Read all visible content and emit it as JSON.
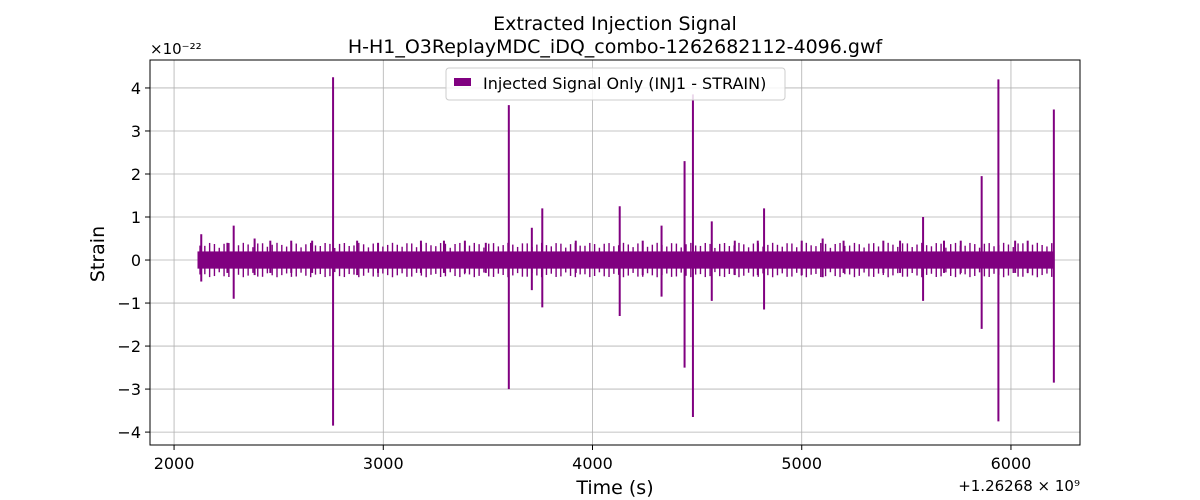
{
  "chart_data": {
    "type": "line",
    "title": "Extracted Injection Signal",
    "subtitle": "H-H1_O3ReplayMDC_iDQ_combo-1262682112-4096.gwf",
    "xlabel": "Time (s)",
    "ylabel": "Strain",
    "y_scale_label": "×10⁻²²",
    "x_offset_label": "+1.26268 × 10⁹",
    "x_ticks": [
      2000,
      3000,
      4000,
      5000,
      6000
    ],
    "x_tick_labels": [
      "2000",
      "3000",
      "4000",
      "5000",
      "6000"
    ],
    "y_ticks": [
      -4,
      -3,
      -2,
      -1,
      0,
      1,
      2,
      3,
      4
    ],
    "y_tick_labels": [
      "−4",
      "−3",
      "−2",
      "−1",
      "0",
      "1",
      "2",
      "3",
      "4"
    ],
    "xlim": [
      1885,
      6330
    ],
    "ylim": [
      -4.3,
      4.65
    ],
    "grid": true,
    "legend_position": "top-center",
    "series": [
      {
        "name": "Injected Signal Only (INJ1 - STRAIN)",
        "color": "#800080",
        "band": {
          "x_start": 2112,
          "x_end": 6208,
          "amplitude": 0.2
        },
        "spikes": [
          {
            "x": 2130,
            "y_max": 0.6,
            "y_min": -0.5
          },
          {
            "x": 2255,
            "y_max": 0.4,
            "y_min": -0.3
          },
          {
            "x": 2285,
            "y_max": 0.8,
            "y_min": -0.9
          },
          {
            "x": 2385,
            "y_max": 0.5,
            "y_min": -0.35
          },
          {
            "x": 2460,
            "y_max": 0.45,
            "y_min": -0.3
          },
          {
            "x": 2560,
            "y_max": 0.45,
            "y_min": -0.3
          },
          {
            "x": 2660,
            "y_max": 0.45,
            "y_min": -0.3
          },
          {
            "x": 2760,
            "y_max": 4.25,
            "y_min": -3.85
          },
          {
            "x": 2875,
            "y_max": 0.45,
            "y_min": -0.35
          },
          {
            "x": 2975,
            "y_max": 0.4,
            "y_min": -0.3
          },
          {
            "x": 3180,
            "y_max": 0.45,
            "y_min": -0.3
          },
          {
            "x": 3290,
            "y_max": 0.45,
            "y_min": -0.3
          },
          {
            "x": 3390,
            "y_max": 0.45,
            "y_min": -0.3
          },
          {
            "x": 3490,
            "y_max": 0.4,
            "y_min": -0.3
          },
          {
            "x": 3600,
            "y_max": 3.6,
            "y_min": -3.0
          },
          {
            "x": 3710,
            "y_max": 0.75,
            "y_min": -0.7
          },
          {
            "x": 3760,
            "y_max": 1.2,
            "y_min": -1.1
          },
          {
            "x": 3920,
            "y_max": 0.45,
            "y_min": -0.3
          },
          {
            "x": 4130,
            "y_max": 1.25,
            "y_min": -1.3
          },
          {
            "x": 4240,
            "y_max": 0.45,
            "y_min": -0.35
          },
          {
            "x": 4330,
            "y_max": 0.8,
            "y_min": -0.85
          },
          {
            "x": 4440,
            "y_max": 2.3,
            "y_min": -2.5
          },
          {
            "x": 4480,
            "y_max": 3.85,
            "y_min": -3.65
          },
          {
            "x": 4570,
            "y_max": 0.9,
            "y_min": -0.95
          },
          {
            "x": 4680,
            "y_max": 0.45,
            "y_min": -0.35
          },
          {
            "x": 4790,
            "y_max": 0.45,
            "y_min": -0.35
          },
          {
            "x": 4820,
            "y_max": 1.2,
            "y_min": -1.15
          },
          {
            "x": 5000,
            "y_max": 0.45,
            "y_min": -0.35
          },
          {
            "x": 5100,
            "y_max": 0.5,
            "y_min": -0.4
          },
          {
            "x": 5200,
            "y_max": 0.45,
            "y_min": -0.3
          },
          {
            "x": 5390,
            "y_max": 0.45,
            "y_min": -0.3
          },
          {
            "x": 5470,
            "y_max": 0.45,
            "y_min": -0.3
          },
          {
            "x": 5580,
            "y_max": 1.0,
            "y_min": -0.95
          },
          {
            "x": 5680,
            "y_max": 0.45,
            "y_min": -0.3
          },
          {
            "x": 5760,
            "y_max": 0.45,
            "y_min": -0.3
          },
          {
            "x": 5860,
            "y_max": 1.95,
            "y_min": -1.6
          },
          {
            "x": 5940,
            "y_max": 4.2,
            "y_min": -3.75
          },
          {
            "x": 6020,
            "y_max": 0.45,
            "y_min": -0.3
          },
          {
            "x": 6080,
            "y_max": 0.45,
            "y_min": -0.3
          },
          {
            "x": 6205,
            "y_max": 3.5,
            "y_min": -2.85
          }
        ]
      }
    ]
  }
}
